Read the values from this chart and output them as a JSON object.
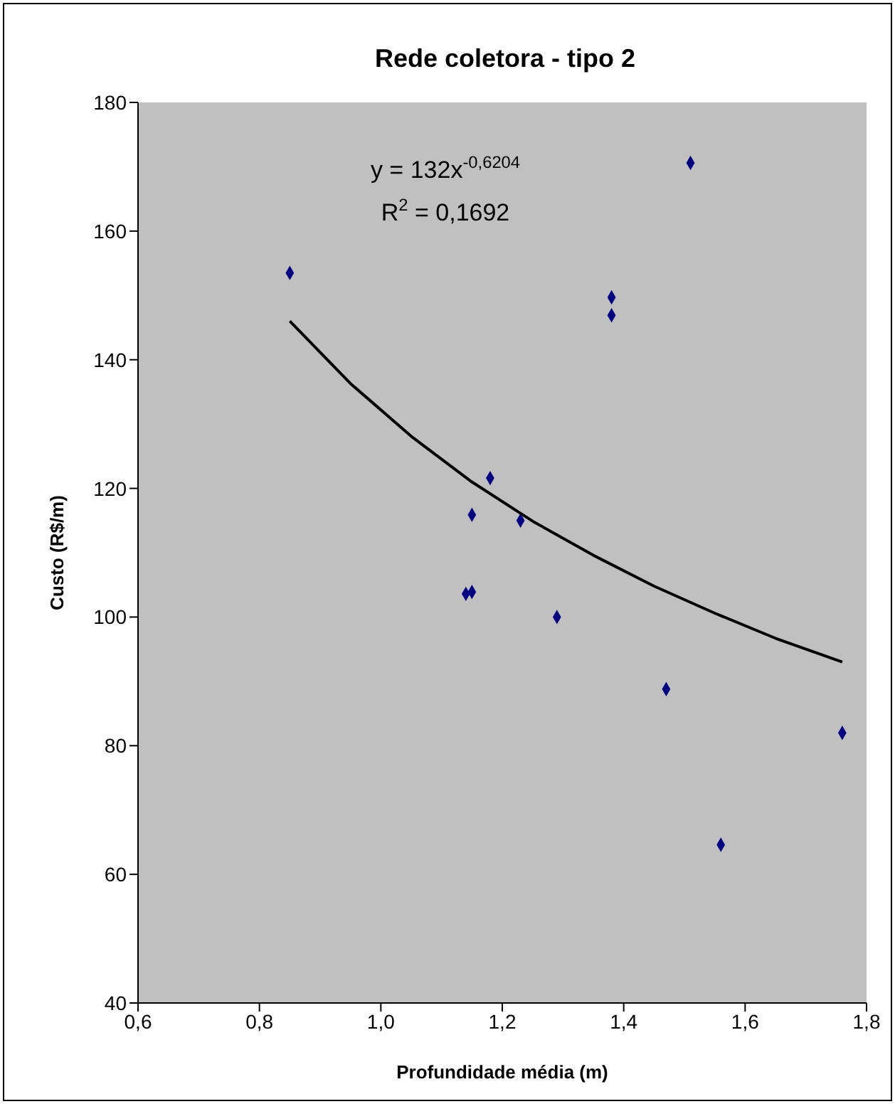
{
  "chart_data": {
    "type": "scatter",
    "title": "Rede coletora - tipo 2",
    "xlabel": "Profundidade média (m)",
    "ylabel": "Custo (R$/m)",
    "annotations": [
      "y = 132x$^{-0,6204}$",
      "R$^{2}$ = 0,1692"
    ],
    "xlim": [
      0.6,
      1.8
    ],
    "xticks": [
      {
        "value": 0.6,
        "label": "0,6"
      },
      {
        "value": 0.8,
        "label": "0,8"
      },
      {
        "value": 1.0,
        "label": "1,0"
      },
      {
        "value": 1.2,
        "label": "1,2"
      },
      {
        "value": 1.4,
        "label": "1,4"
      },
      {
        "value": 1.6,
        "label": "1,6"
      },
      {
        "value": 1.8,
        "label": "1,8"
      }
    ],
    "ylim": [
      40,
      180
    ],
    "yticks": [
      40,
      60,
      80,
      100,
      120,
      140,
      160,
      180
    ],
    "grid": false,
    "marker": "diamond",
    "series": [
      {
        "color": "#000080",
        "x": [
          0.85,
          1.51,
          1.38,
          1.38,
          1.18,
          1.15,
          1.23,
          1.14,
          1.15,
          1.29,
          1.47,
          1.56,
          1.76
        ],
        "values": [
          153.5,
          170.6,
          149.7,
          146.9,
          121.6,
          115.9,
          115.0,
          103.6,
          103.9,
          100.0,
          88.8,
          64.6,
          82.0
        ]
      },
      {
        "type": "line",
        "color": "#000000",
        "marker": "none",
        "x": [
          0.85,
          0.95,
          1.05,
          1.15,
          1.25,
          1.35,
          1.45,
          1.55,
          1.65,
          1.76
        ],
        "values": [
          146.0,
          136.3,
          128.1,
          121.0,
          114.9,
          109.6,
          104.8,
          100.6,
          96.7,
          93.0
        ]
      }
    ]
  }
}
